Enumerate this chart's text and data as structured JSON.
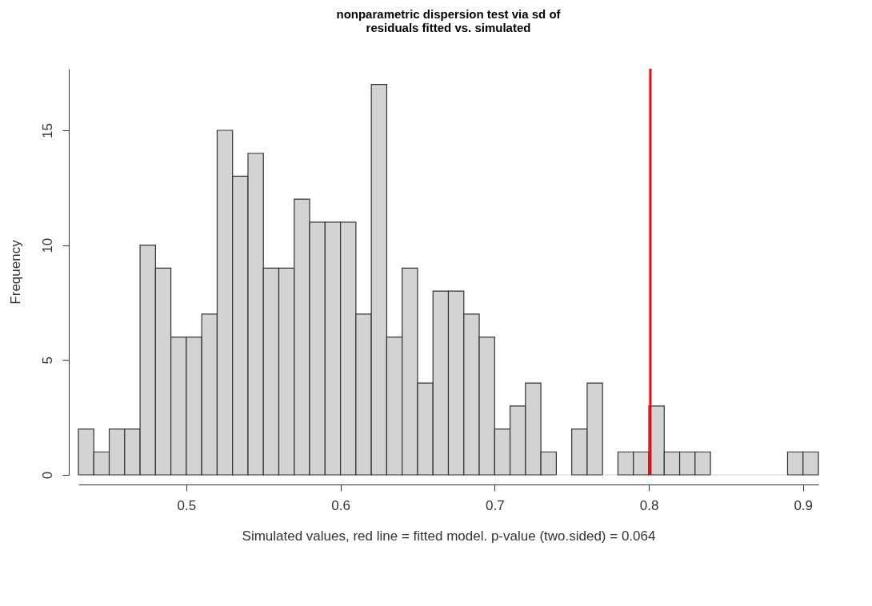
{
  "chart_data": {
    "type": "histogram",
    "title": "nonparametric dispersion test via sd of\nresiduals fitted vs. simulated",
    "xlabel": "Simulated values, red line = fitted model. p-value (two.sided) = 0.064",
    "ylabel": "Frequency",
    "bins": [
      0.43,
      0.44,
      0.45,
      0.46,
      0.47,
      0.48,
      0.49,
      0.5,
      0.51,
      0.52,
      0.53,
      0.54,
      0.55,
      0.56,
      0.57,
      0.58,
      0.59,
      0.6,
      0.61,
      0.62,
      0.63,
      0.64,
      0.65,
      0.66,
      0.67,
      0.68,
      0.69,
      0.7,
      0.71,
      0.72,
      0.73,
      0.74,
      0.75,
      0.76,
      0.77,
      0.78,
      0.79,
      0.8,
      0.81,
      0.82,
      0.83,
      0.84,
      0.85,
      0.86,
      0.87,
      0.88,
      0.89,
      0.9,
      0.91
    ],
    "values": [
      2,
      1,
      2,
      2,
      10,
      9,
      6,
      6,
      7,
      15,
      13,
      14,
      9,
      9,
      12,
      11,
      11,
      11,
      7,
      17,
      6,
      9,
      4,
      8,
      8,
      7,
      6,
      2,
      3,
      4,
      1,
      0,
      2,
      4,
      0,
      1,
      1,
      3,
      1,
      1,
      1,
      0,
      0,
      0,
      0,
      0,
      1,
      1
    ],
    "color": "#d3d3d3",
    "xlim": [
      0.43,
      0.91
    ],
    "xticks": [
      0.5,
      0.6,
      0.7,
      0.8,
      0.9
    ],
    "ylim": [
      0,
      17.68
    ],
    "yticks": [
      0,
      5,
      10,
      15
    ],
    "grid": false,
    "ref_lines": [
      {
        "axis": "x",
        "value": 0.801,
        "color": "#ff0000"
      }
    ]
  }
}
